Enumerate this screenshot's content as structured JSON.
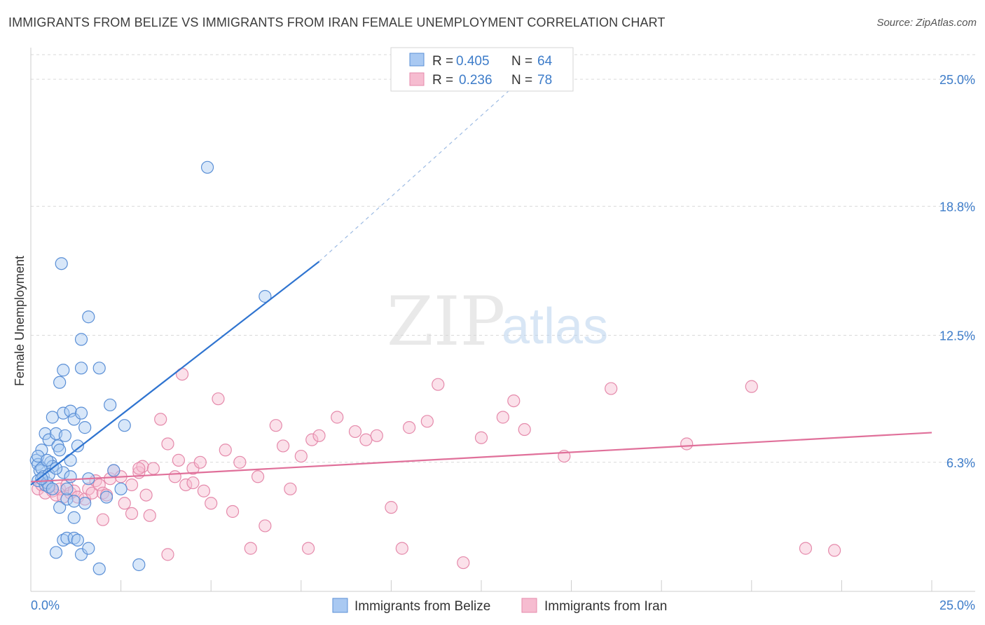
{
  "header": {
    "title": "IMMIGRANTS FROM BELIZE VS IMMIGRANTS FROM IRAN FEMALE UNEMPLOYMENT CORRELATION CHART",
    "source": "Source: ZipAtlas.com"
  },
  "watermark": {
    "zip": "ZIP",
    "atlas": "atlas"
  },
  "legend_top": {
    "rows": [
      {
        "r_label": "R = ",
        "r_value": "0.405",
        "n_label": "N = ",
        "n_value": "64"
      },
      {
        "r_label": "R = ",
        "r_value": "0.236",
        "n_label": "N = ",
        "n_value": "78"
      }
    ]
  },
  "colors": {
    "belize_fill": "#a9c9f2",
    "belize_stroke": "#5a8fd6",
    "belize_line": "#2f74d0",
    "iran_fill": "#f6bcd0",
    "iran_stroke": "#e58aab",
    "iran_line": "#e0709a",
    "tick_text": "#3d7cc9",
    "grid": "#d9d9d9"
  },
  "chart_data": {
    "type": "scatter",
    "title": "IMMIGRANTS FROM BELIZE VS IMMIGRANTS FROM IRAN FEMALE UNEMPLOYMENT CORRELATION CHART",
    "xlabel": "",
    "ylabel": "Female Unemployment",
    "xlim": [
      0,
      25
    ],
    "ylim": [
      0,
      26.2
    ],
    "x_tick_labels": [
      "0.0%",
      "25.0%"
    ],
    "y_ticks": [
      6.3,
      12.5,
      18.8,
      25.0
    ],
    "y_tick_labels": [
      "6.3%",
      "12.5%",
      "18.8%",
      "25.0%"
    ],
    "grid": true,
    "legend_position": "bottom",
    "series": [
      {
        "name": "Immigrants from Belize",
        "R": 0.405,
        "N": 64,
        "trend": {
          "x0": 0.0,
          "y0": 5.2,
          "x1": 8.0,
          "y1": 16.1,
          "dashed_to_x": 14.0,
          "dashed_to_y": 25.6
        },
        "points": [
          [
            0.15,
            6.4
          ],
          [
            0.2,
            6.2
          ],
          [
            0.25,
            5.9
          ],
          [
            0.3,
            6.0
          ],
          [
            0.2,
            5.4
          ],
          [
            0.35,
            5.6
          ],
          [
            0.4,
            5.2
          ],
          [
            0.45,
            5.3
          ],
          [
            0.5,
            5.1
          ],
          [
            0.6,
            5.0
          ],
          [
            0.3,
            6.9
          ],
          [
            0.4,
            7.7
          ],
          [
            0.5,
            7.4
          ],
          [
            0.55,
            6.3
          ],
          [
            0.6,
            6.1
          ],
          [
            0.7,
            7.7
          ],
          [
            0.75,
            7.1
          ],
          [
            0.8,
            6.9
          ],
          [
            0.9,
            5.8
          ],
          [
            0.95,
            7.6
          ],
          [
            0.6,
            8.5
          ],
          [
            0.9,
            8.7
          ],
          [
            1.1,
            8.8
          ],
          [
            1.2,
            8.4
          ],
          [
            1.4,
            8.7
          ],
          [
            1.5,
            8.0
          ],
          [
            1.3,
            7.1
          ],
          [
            1.1,
            6.4
          ],
          [
            0.8,
            4.1
          ],
          [
            1.0,
            4.5
          ],
          [
            1.2,
            3.6
          ],
          [
            1.5,
            4.3
          ],
          [
            0.9,
            2.5
          ],
          [
            1.0,
            2.6
          ],
          [
            1.2,
            2.6
          ],
          [
            1.3,
            2.5
          ],
          [
            0.7,
            1.9
          ],
          [
            1.4,
            1.8
          ],
          [
            1.6,
            2.1
          ],
          [
            1.9,
            1.1
          ],
          [
            2.3,
            5.9
          ],
          [
            2.5,
            5.0
          ],
          [
            2.6,
            8.1
          ],
          [
            2.2,
            9.1
          ],
          [
            1.9,
            10.9
          ],
          [
            1.4,
            10.9
          ],
          [
            0.9,
            10.8
          ],
          [
            0.8,
            10.2
          ],
          [
            1.4,
            12.3
          ],
          [
            1.6,
            13.4
          ],
          [
            0.85,
            16.0
          ],
          [
            3.0,
            1.3
          ],
          [
            4.9,
            20.7
          ],
          [
            6.5,
            14.4
          ],
          [
            1.1,
            5.6
          ],
          [
            0.5,
            5.7
          ],
          [
            0.3,
            5.5
          ],
          [
            0.2,
            6.6
          ],
          [
            1.0,
            5.0
          ],
          [
            1.2,
            4.4
          ],
          [
            2.1,
            4.6
          ],
          [
            0.7,
            6.0
          ],
          [
            1.6,
            5.5
          ],
          [
            0.45,
            6.4
          ]
        ]
      },
      {
        "name": "Immigrants from Iran",
        "R": 0.236,
        "N": 78,
        "trend": {
          "x0": 0.0,
          "y0": 5.35,
          "x1": 25.0,
          "y1": 7.75
        },
        "points": [
          [
            0.2,
            5.0
          ],
          [
            0.3,
            5.2
          ],
          [
            0.4,
            4.8
          ],
          [
            0.5,
            5.1
          ],
          [
            0.6,
            4.9
          ],
          [
            0.7,
            4.7
          ],
          [
            0.8,
            5.0
          ],
          [
            0.9,
            4.6
          ],
          [
            1.0,
            5.2
          ],
          [
            1.1,
            4.8
          ],
          [
            1.2,
            4.9
          ],
          [
            1.3,
            4.6
          ],
          [
            1.5,
            4.5
          ],
          [
            1.6,
            5.0
          ],
          [
            1.7,
            4.8
          ],
          [
            1.8,
            5.4
          ],
          [
            1.9,
            5.2
          ],
          [
            2.0,
            4.8
          ],
          [
            2.1,
            4.7
          ],
          [
            2.2,
            5.5
          ],
          [
            2.3,
            5.9
          ],
          [
            2.5,
            5.6
          ],
          [
            2.6,
            4.3
          ],
          [
            2.8,
            5.2
          ],
          [
            3.0,
            5.8
          ],
          [
            3.1,
            6.1
          ],
          [
            3.2,
            4.7
          ],
          [
            3.3,
            3.7
          ],
          [
            3.4,
            6.0
          ],
          [
            3.6,
            8.4
          ],
          [
            3.8,
            7.2
          ],
          [
            4.0,
            5.6
          ],
          [
            4.1,
            6.4
          ],
          [
            4.3,
            5.2
          ],
          [
            4.5,
            6.0
          ],
          [
            4.7,
            6.3
          ],
          [
            4.8,
            4.9
          ],
          [
            5.0,
            4.3
          ],
          [
            5.2,
            9.4
          ],
          [
            5.4,
            6.9
          ],
          [
            5.6,
            3.9
          ],
          [
            5.8,
            6.3
          ],
          [
            6.1,
            2.1
          ],
          [
            6.5,
            3.2
          ],
          [
            6.8,
            8.1
          ],
          [
            7.0,
            7.1
          ],
          [
            7.2,
            5.0
          ],
          [
            7.5,
            6.6
          ],
          [
            7.7,
            2.1
          ],
          [
            7.8,
            7.4
          ],
          [
            8.0,
            7.6
          ],
          [
            8.5,
            8.5
          ],
          [
            9.0,
            7.8
          ],
          [
            9.3,
            7.4
          ],
          [
            9.6,
            7.6
          ],
          [
            10.0,
            4.1
          ],
          [
            10.3,
            2.1
          ],
          [
            10.5,
            8.0
          ],
          [
            11.0,
            8.3
          ],
          [
            11.3,
            10.1
          ],
          [
            12.0,
            1.4
          ],
          [
            12.5,
            7.5
          ],
          [
            13.1,
            8.5
          ],
          [
            13.4,
            9.3
          ],
          [
            13.7,
            7.9
          ],
          [
            14.8,
            6.6
          ],
          [
            16.1,
            9.9
          ],
          [
            18.2,
            7.2
          ],
          [
            20.0,
            10.0
          ],
          [
            21.5,
            2.1
          ],
          [
            22.3,
            2.0
          ],
          [
            3.8,
            1.8
          ],
          [
            2.8,
            3.8
          ],
          [
            4.2,
            10.6
          ],
          [
            4.5,
            5.3
          ],
          [
            3.0,
            6.0
          ],
          [
            2.0,
            3.5
          ],
          [
            6.3,
            5.6
          ]
        ]
      }
    ]
  },
  "legend_bottom": {
    "items": [
      "Immigrants from Belize",
      "Immigrants from Iran"
    ]
  }
}
